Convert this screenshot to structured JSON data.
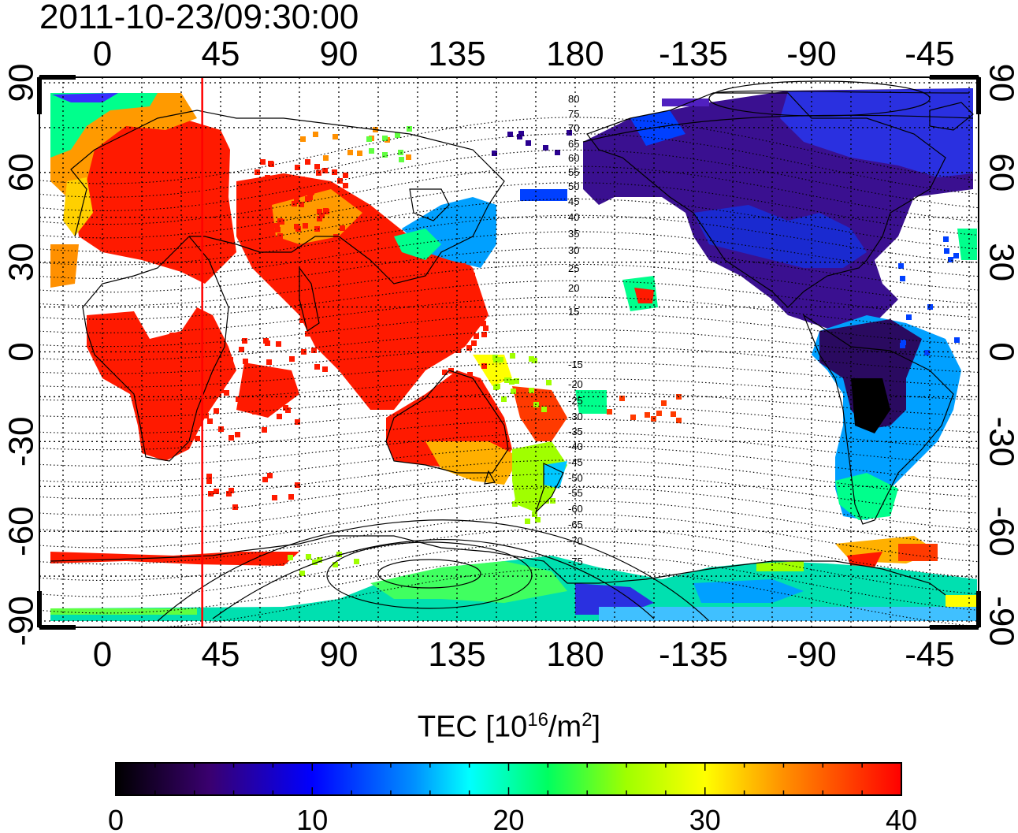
{
  "title": "2011-10-23/09:30:00",
  "top_axis_ticks": [
    "0",
    "45",
    "90",
    "135",
    "180",
    "-135",
    "-90",
    "-45"
  ],
  "bottom_axis_ticks": [
    "0",
    "45",
    "90",
    "135",
    "180",
    "-135",
    "-90",
    "-45"
  ],
  "left_axis_ticks": [
    "90",
    "60",
    "30",
    "0",
    "-30",
    "-60",
    "-90"
  ],
  "right_axis_ticks": [
    "90",
    "60",
    "30",
    "0",
    "-30",
    "-60",
    "-90"
  ],
  "mlat_labels": [
    "80",
    "75",
    "70",
    "65",
    "60",
    "55",
    "50",
    "45",
    "40",
    "35",
    "30",
    "25",
    "20",
    "15",
    "-15",
    "-20",
    "-25",
    "-30",
    "-35",
    "-40",
    "-45",
    "-50",
    "-55",
    "-60",
    "-65",
    "-70",
    "-75"
  ],
  "colorbar": {
    "label_main": "TEC  [10",
    "label_exp1": "16",
    "label_mid": "/m",
    "label_exp2": "2",
    "label_end": "]",
    "ticks": [
      "0",
      "10",
      "20",
      "30",
      "40"
    ],
    "min": 0,
    "max": 40
  },
  "marker_longitude": 38,
  "colors": {
    "marker": "#ff0000",
    "scale": [
      "#000000",
      "#3a0070",
      "#0000ff",
      "#00c8ff",
      "#00ff60",
      "#ffff00",
      "#ff8000",
      "#ff0000"
    ]
  }
}
